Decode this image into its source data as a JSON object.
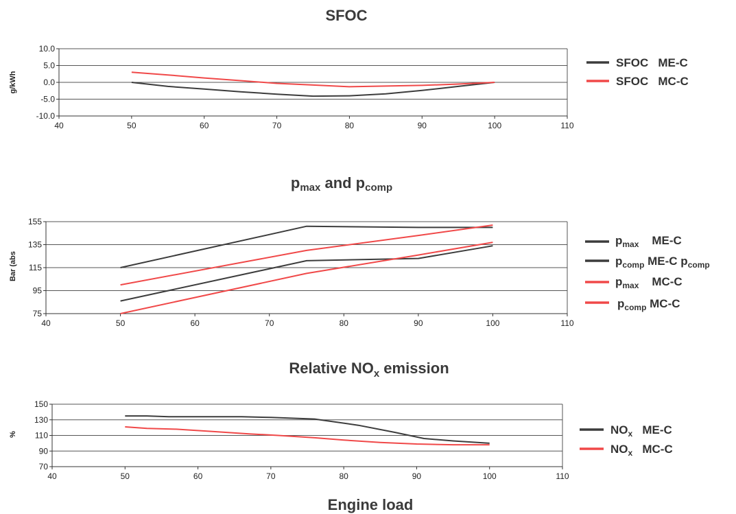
{
  "colors": {
    "me": "#3c3c3c",
    "mc": "#f04848",
    "axis": "#333333",
    "grid": "#555555"
  },
  "x_axis_label": "Engine load",
  "chart_data": [
    {
      "type": "line",
      "title": "SFOC",
      "ylabel": "g/kWh",
      "xlim": [
        40,
        110
      ],
      "xticks": [
        40,
        50,
        60,
        70,
        80,
        90,
        100,
        110
      ],
      "ylim": [
        -10,
        10
      ],
      "yticks": [
        "-10.0",
        "-5.0",
        "0.0",
        "5.0",
        "10.0"
      ],
      "grid": "horizontal",
      "legend": "right",
      "series": [
        {
          "name": "SFOC   ME-C",
          "color_key": "me",
          "x": [
            50,
            55,
            60,
            65,
            70,
            75,
            80,
            85,
            90,
            95,
            100
          ],
          "y": [
            0,
            -1.2,
            -2.0,
            -2.8,
            -3.5,
            -4.1,
            -4.0,
            -3.4,
            -2.4,
            -1.2,
            0
          ]
        },
        {
          "name": "SFOC   MC-C",
          "color_key": "mc",
          "x": [
            50,
            55,
            60,
            65,
            70,
            75,
            80,
            85,
            90,
            95,
            100
          ],
          "y": [
            3.0,
            2.2,
            1.3,
            0.5,
            -0.3,
            -0.8,
            -1.3,
            -1.1,
            -0.9,
            -0.5,
            0
          ]
        }
      ]
    },
    {
      "type": "line",
      "title_main": "p",
      "title_sub1": "max",
      "title_mid": " and p",
      "title_sub2": "comp",
      "ylabel": "Bar (abs",
      "xlim": [
        40,
        110
      ],
      "xticks": [
        40,
        50,
        60,
        70,
        80,
        90,
        100,
        110
      ],
      "ylim": [
        75,
        155
      ],
      "yticks": [
        "75",
        "95",
        "115",
        "135",
        "155"
      ],
      "grid": "horizontal",
      "legend": "right",
      "series": [
        {
          "name_main": "p",
          "name_sub": "max",
          "name_rest": "    ME-C",
          "name_sub2": "",
          "color_key": "me",
          "x": [
            50,
            75,
            90,
            100
          ],
          "y": [
            115,
            151,
            150,
            150
          ]
        },
        {
          "name_main": "p",
          "name_sub": "comp",
          "name_rest": " ME-C p",
          "name_sub2": "comp",
          "color_key": "me",
          "x": [
            50,
            75,
            90,
            100
          ],
          "y": [
            86,
            121,
            123,
            134
          ]
        },
        {
          "name_main": "p",
          "name_sub": "max",
          "name_rest": "    MC-C",
          "name_sub2": "",
          "color_key": "mc",
          "x": [
            50,
            75,
            90,
            100
          ],
          "y": [
            100,
            130,
            143,
            152
          ]
        },
        {
          "name_main": "p",
          "name_sub": "comp",
          "name_rest": " MC-C",
          "name_sub2": "",
          "color_key": "mc",
          "x": [
            50,
            75,
            90,
            100
          ],
          "y": [
            75,
            110,
            126,
            137
          ]
        }
      ]
    },
    {
      "type": "line",
      "title_main": "Relative NO",
      "title_sub1": "x",
      "title_mid": " emission",
      "ylabel": "%",
      "xlim": [
        40,
        110
      ],
      "xticks": [
        40,
        50,
        60,
        70,
        80,
        90,
        100,
        110
      ],
      "ylim": [
        70,
        150
      ],
      "yticks": [
        "70",
        "90",
        "110",
        "130",
        "150"
      ],
      "grid": "horizontal",
      "legend": "right",
      "series": [
        {
          "name_main": "NO",
          "name_sub": "x",
          "name_rest": "   ME-C",
          "color_key": "me",
          "x": [
            50,
            53,
            56,
            60,
            66,
            70,
            76,
            82,
            87,
            91,
            95,
            100
          ],
          "y": [
            135,
            135,
            134,
            134,
            134,
            133,
            131,
            123,
            114,
            106,
            103,
            100
          ]
        },
        {
          "name_main": "NO",
          "name_sub": "x",
          "name_rest": "   MC-C",
          "color_key": "mc",
          "x": [
            50,
            53,
            57,
            62,
            67,
            71,
            76,
            80,
            85,
            90,
            95,
            100
          ],
          "y": [
            121,
            119,
            118,
            115,
            112,
            110,
            107,
            104,
            101,
            99,
            98,
            98
          ]
        }
      ]
    }
  ]
}
